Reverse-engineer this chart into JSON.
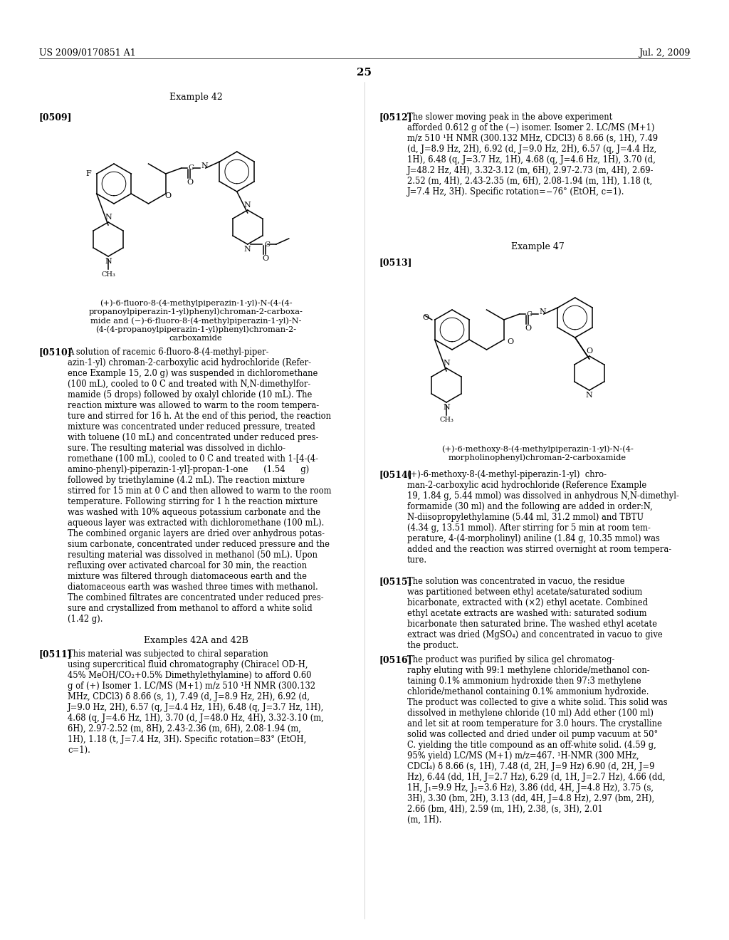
{
  "background_color": "#ffffff",
  "header_left": "US 2009/0170851 A1",
  "header_right": "Jul. 2, 2009",
  "page_number": "25",
  "left_column": {
    "example_title": "Example 42",
    "paragraph_0509_label": "[0509]",
    "compound_name_42": "(+)-6-fluoro-8-(4-methylpiperazin-1-yl)-N-(4-(4-\npropanoylpiperazin-1-yl)phenyl)chroman-2-carboxa-\nmide and (−)-6-fluoro-8-(4-methylpiperazin-1-yl)-N-\n(4-(4-propanoylpiperazin-1-yl)phenyl)chroman-2-\ncarboxamide",
    "paragraph_0510_label": "[0510]",
    "paragraph_0510_text": "A solution of racemic 6-fluoro-8-(4-methyl-piper-\nazin-1-yl) chroman-2-carboxylic acid hydrochloride (Refer-\nence Example 15, 2.0 g) was suspended in dichloromethane\n(100 mL), cooled to 0 C and treated with N,N-dimethylfor-\nmamide (5 drops) followed by oxalyl chloride (10 mL). The\nreaction mixture was allowed to warm to the room tempera-\nture and stirred for 16 h. At the end of this period, the reaction\nmixture was concentrated under reduced pressure, treated\nwith toluene (10 mL) and concentrated under reduced pres-\nsure. The resulting material was dissolved in dichlo-\nromethane (100 mL), cooled to 0 C and treated with 1-[4-(4-\namino-phenyl)-piperazin-1-yl]-propan-1-one      (1.54      g)\nfollowed by triethylamine (4.2 mL). The reaction mixture\nstirred for 15 min at 0 C and then allowed to warm to the room\ntemperature. Following stirring for 1 h the reaction mixture\nwas washed with 10% aqueous potassium carbonate and the\naqueous layer was extracted with dichloromethane (100 mL).\nThe combined organic layers are dried over anhydrous potas-\nsium carbonate, concentrated under reduced pressure and the\nresulting material was dissolved in methanol (50 mL). Upon\nrefluxing over activated charcoal for 30 min, the reaction\nmixture was filtered through diatomaceous earth and the\ndiatomaceous earth was washed three times with methanol.\nThe combined filtrates are concentrated under reduced pres-\nsure and crystallized from methanol to afford a white solid\n(1.42 g).",
    "examples_42ab_title": "Examples 42A and 42B",
    "paragraph_0511_label": "[0511]",
    "paragraph_0511_text": "This material was subjected to chiral separation\nusing supercritical fluid chromatography (Chiracel OD-H,\n45% MeOH/CO₂+0.5% Dimethylethylamine) to afford 0.60\ng of (+) Isomer 1. LC/MS (M+1) m/z 510 ¹H NMR (300.132\nMHz, CDCl3) δ 8.66 (s, 1), 7.49 (d, J=8.9 Hz, 2H), 6.92 (d,\nJ=9.0 Hz, 2H), 6.57 (q, J=4.4 Hz, 1H), 6.48 (q, J=3.7 Hz, 1H),\n4.68 (q, J=4.6 Hz, 1H), 3.70 (d, J=48.0 Hz, 4H), 3.32-3.10 (m,\n6H), 2.97-2.52 (m, 8H), 2.43-2.36 (m, 6H), 2.08-1.94 (m,\n1H), 1.18 (t, J=7.4 Hz, 3H). Specific rotation=83° (EtOH,\nc=1)."
  },
  "right_column": {
    "paragraph_0512_label": "[0512]",
    "paragraph_0512_text": "The slower moving peak in the above experiment\nafforded 0.612 g of the (−) isomer. Isomer 2. LC/MS (M+1)\nm/z 510 ¹H NMR (300.132 MHz, CDCl3) δ 8.66 (s, 1H), 7.49\n(d, J=8.9 Hz, 2H), 6.92 (d, J=9.0 Hz, 2H), 6.57 (q, J=4.4 Hz,\n1H), 6.48 (q, J=3.7 Hz, 1H), 4.68 (q, J=4.6 Hz, 1H), 3.70 (d,\nJ=48.2 Hz, 4H), 3.32-3.12 (m, 6H), 2.97-2.73 (m, 4H), 2.69-\n2.52 (m, 4H), 2.43-2.35 (m, 6H), 2.08-1.94 (m, 1H), 1.18 (t,\nJ=7.4 Hz, 3H). Specific rotation=−76° (EtOH, c=1).",
    "example_47_title": "Example 47",
    "paragraph_0513_label": "[0513]",
    "compound_name_47": "(+)-6-methoxy-8-(4-methylpiperazin-1-yl)-N-(4-\nmorpholinophenyl)chroman-2-carboxamide",
    "paragraph_0514_label": "[0514]",
    "paragraph_0514_text": "(+)-6-methoxy-8-(4-methyl-piperazin-1-yl)  chro-\nman-2-carboxylic acid hydrochloride (Reference Example\n19, 1.84 g, 5.44 mmol) was dissolved in anhydrous N,N-dimethyl-\nformamide (30 ml) and the following are added in order:N,\nN-diisopropylethylamine (5.44 ml, 31.2 mmol) and TBTU\n(4.34 g, 13.51 mmol). After stirring for 5 min at room tem-\nperature, 4-(4-morpholinyl) aniline (1.84 g, 10.35 mmol) was\nadded and the reaction was stirred overnight at room tempera-\nture.",
    "paragraph_0515_label": "[0515]",
    "paragraph_0515_text": "The solution was concentrated in vacuo, the residue\nwas partitioned between ethyl acetate/saturated sodium\nbicarbonate, extracted with (×2) ethyl acetate. Combined\nethyl acetate extracts are washed with: saturated sodium\nbicarbonate then saturated brine. The washed ethyl acetate\nextract was dried (MgSO₄) and concentrated in vacuo to give\nthe product.",
    "paragraph_0516_label": "[0516]",
    "paragraph_0516_text": "The product was purified by silica gel chromatog-\nraphy eluting with 99:1 methylene chloride/methanol con-\ntaining 0.1% ammonium hydroxide then 97:3 methylene\nchloride/methanol containing 0.1% ammonium hydroxide.\nThe product was collected to give a white solid. This solid was\ndissolved in methylene chloride (10 ml) Add ether (100 ml)\nand let sit at room temperature for 3.0 hours. The crystalline\nsolid was collected and dried under oil pump vacuum at 50°\nC. yielding the title compound as an off-white solid. (4.59 g,\n95% yield) LC/MS (M+1) m/z=467. ¹H-NMR (300 MHz,\nCDCl₄) δ 8.66 (s, 1H), 7.48 (d, 2H, J=9 Hz) 6.90 (d, 2H, J=9\nHz), 6.44 (dd, 1H, J=2.7 Hz), 6.29 (d, 1H, J=2.7 Hz), 4.66 (dd,\n1H, J₁=9.9 Hz, J₂=3.6 Hz), 3.86 (dd, 4H, J=4.8 Hz), 3.75 (s,\n3H), 3.30 (bm, 2H), 3.13 (dd, 4H, J=4.8 Hz), 2.97 (bm, 2H),\n2.66 (bm, 4H), 2.59 (m, 1H), 2.38, (s, 3H), 2.01\n(m, 1H)."
  }
}
